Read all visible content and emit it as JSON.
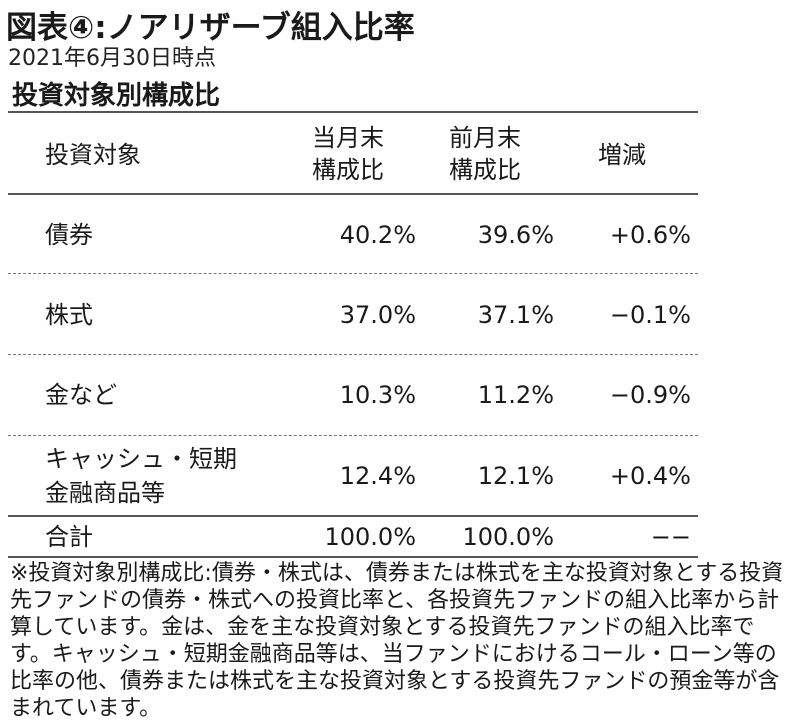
{
  "title": "図表④:ノアリザーブ組入比率",
  "date": "2021年6月30日時点",
  "subtitle": "投資対象別構成比",
  "table": {
    "headers": {
      "col0": "投資対象",
      "col1": [
        "当月末",
        "構成比"
      ],
      "col2": [
        "前月末",
        "構成比"
      ],
      "col3": "増減"
    },
    "rows": [
      {
        "label": [
          "債券"
        ],
        "current": "40.2%",
        "previous": "39.6%",
        "change": "+0.6%"
      },
      {
        "label": [
          "株式"
        ],
        "current": "37.0%",
        "previous": "37.1%",
        "change": "−0.1%"
      },
      {
        "label": [
          "金など"
        ],
        "current": "10.3%",
        "previous": "11.2%",
        "change": "−0.9%"
      },
      {
        "label": [
          "キャッシュ・短期",
          "金融商品等"
        ],
        "current": "12.4%",
        "previous": "12.1%",
        "change": "+0.4%"
      }
    ],
    "total": {
      "label": "合計",
      "current": "100.0%",
      "previous": "100.0%",
      "change": "−−"
    }
  },
  "note": "※投資対象別構成比:債券・株式は、債券または株式を主な投資対象とする投資先ファンドの債券・株式への投資比率と、各投資先ファンドの組入比率から計算しています。金は、金を主な投資対象とする投資先ファンドの組入比率です。キャッシュ・短期金融商品等は、当ファンドにおけるコール・ローン等の比率の他、債券または株式を主な投資対象とする投資先ファンドの預金等が含まれています。"
}
